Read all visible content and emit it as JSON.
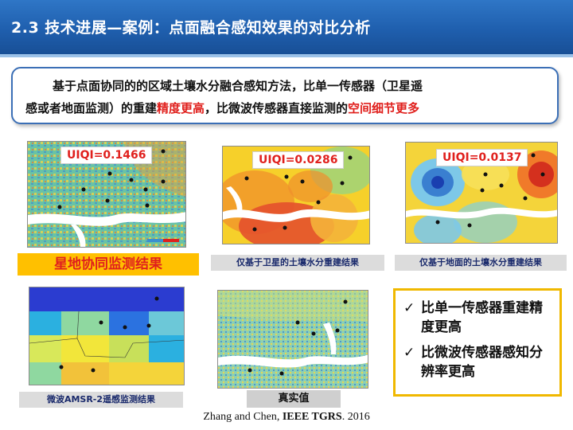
{
  "header": {
    "title": "2.3 技术进展—案例：点面融合感知效果的对比分析"
  },
  "summary": {
    "line1": "基于点面协同的的区域土壤水分融合感知方法，比单一传感器（卫星遥",
    "line2_prefix": "感或者地面监测）的重建",
    "line2_highlight1": "精度更高",
    "line2_middle": "，比微波传感器直接监测的",
    "line2_highlight2": "空间细节更多"
  },
  "maps": {
    "fused": {
      "uiqi": "UIQI=0.1466",
      "caption": "星地协同监测结果"
    },
    "satellite": {
      "uiqi": "UIQI=0.0286",
      "caption": "仅基于卫星的土壤水分重建结果"
    },
    "ground": {
      "uiqi": "UIQI=0.0137",
      "caption": "仅基于地面的土壤水分重建结果"
    },
    "amsr": {
      "caption": "微波AMSR-2遥感监测结果"
    },
    "truth": {
      "caption": "真实值"
    }
  },
  "conclusion": {
    "check": "✓",
    "item1": "比单一传感器重建精度更高",
    "item2": "比微波传感器感知分辨率更高"
  },
  "citation": {
    "authors": "Zhang and Chen, ",
    "journal": "IEEE TGRS",
    "year": ". 2016"
  },
  "colors": {
    "header_blue": "#1f5fae",
    "highlight_red": "#e0201d",
    "caption_orange": "#ffc000",
    "conclusion_border": "#f0b800"
  }
}
